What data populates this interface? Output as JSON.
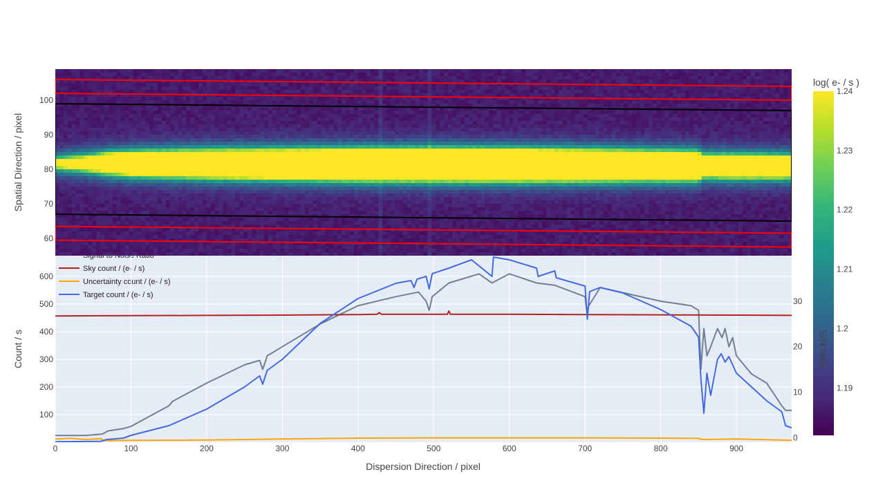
{
  "chart_data": [
    {
      "type": "heatmap",
      "title": "",
      "xlabel": "",
      "ylabel": "Spatial Direction / pixel",
      "xlim": [
        0,
        973
      ],
      "ylim": [
        55,
        109
      ],
      "yticks": [
        60,
        70,
        80,
        90,
        100
      ],
      "colorbar": {
        "title": "log( e- / s )",
        "range": [
          1.182,
          1.24
        ],
        "ticks": [
          "1.24",
          "1.23",
          "1.22",
          "1.21",
          "1.2",
          "1.19"
        ],
        "tick_values": [
          1.24,
          1.23,
          1.22,
          1.21,
          1.2,
          1.19
        ],
        "colorscale": [
          "#440154",
          "#482878",
          "#3e4989",
          "#31688e",
          "#26828e",
          "#1f9e89",
          "#35b779",
          "#6ece58",
          "#b5de2b",
          "#fde725"
        ]
      },
      "trace": {
        "profile": [
          [
            0,
            81.7,
            0.8
          ],
          [
            60,
            81.7,
            2.2
          ],
          [
            66,
            81.7,
            2.6
          ],
          [
            100,
            81.6,
            3.1
          ],
          [
            200,
            81.5,
            3.7
          ],
          [
            300,
            81.4,
            4.0
          ],
          [
            400,
            81.3,
            4.3
          ],
          [
            500,
            81.3,
            4.4
          ],
          [
            600,
            81.2,
            4.4
          ],
          [
            700,
            81.1,
            4.2
          ],
          [
            800,
            81.0,
            3.9
          ],
          [
            850,
            80.9,
            3.8
          ],
          [
            855,
            80.9,
            2.8
          ],
          [
            900,
            80.8,
            3.0
          ],
          [
            973,
            80.7,
            2.8
          ]
        ]
      },
      "bright_columns": [
        428,
        495
      ],
      "boxes": {
        "target_aperture": {
          "color": "#000000",
          "x": [
            0,
            973
          ],
          "upper_y": [
            99,
            97
          ],
          "lower_y": [
            67,
            65
          ]
        },
        "sky_regions": [
          {
            "color": "#ff0000",
            "x": [
              0,
              973
            ],
            "upper_y": [
              106,
              104
            ],
            "lower_y": [
              102,
              100
            ]
          },
          {
            "color": "#ff0000",
            "x": [
              0,
              973
            ],
            "upper_y": [
              63.5,
              61.5
            ],
            "lower_y": [
              59.5,
              57.5
            ]
          }
        ]
      }
    },
    {
      "type": "line",
      "title": "",
      "xlabel": "Dispersion Direction / pixel",
      "ylabel": "Count / s",
      "y2label": "S/N ratio",
      "xlim": [
        0,
        973
      ],
      "ylim": [
        0,
        675
      ],
      "y2lim": [
        -1,
        40
      ],
      "xticks": [
        0,
        100,
        200,
        300,
        400,
        500,
        600,
        700,
        800,
        900
      ],
      "yticks": [
        100,
        200,
        300,
        400,
        500,
        600
      ],
      "y2ticks": [
        0,
        10,
        20,
        30
      ],
      "grid": true,
      "legend_position": "top-left",
      "series": [
        {
          "name": "Signal to Noise Ratio",
          "color": "#708090",
          "axis": "y2",
          "x": [
            0,
            40,
            62,
            70,
            90,
            100,
            150,
            155,
            200,
            250,
            270,
            274,
            280,
            300,
            350,
            400,
            450,
            480,
            490,
            494,
            498,
            520,
            560,
            577,
            600,
            636,
            660,
            700,
            702,
            705,
            720,
            800,
            840,
            850,
            853,
            857,
            861,
            866,
            875,
            881,
            885,
            890,
            895,
            900,
            910,
            920,
            940,
            960,
            965,
            973
          ],
          "y": [
            0.5,
            0.5,
            0.8,
            1.5,
            2,
            2.5,
            7,
            8,
            12,
            16,
            17,
            15,
            18,
            20,
            25,
            29,
            31,
            32,
            30,
            28,
            31,
            34,
            36,
            34,
            36,
            34,
            33.5,
            31,
            28,
            29,
            33,
            30,
            29,
            28,
            15,
            24,
            18,
            20,
            24,
            22,
            24,
            20,
            22,
            18,
            16,
            14,
            12,
            7,
            6,
            6
          ]
        },
        {
          "name": "Sky count / (e- / s)",
          "color": "#b22222",
          "axis": "y",
          "x": [
            0,
            100,
            200,
            300,
            400,
            425,
            428,
            431,
            500,
            518,
            520,
            522,
            600,
            700,
            800,
            900,
            973
          ],
          "y": [
            457,
            458,
            459,
            460,
            462,
            463,
            469,
            463,
            463,
            463,
            475,
            463,
            463,
            462,
            461,
            460,
            459
          ]
        },
        {
          "name": "Uncertainty count / (e- / s)",
          "color": "#ffa500",
          "axis": "y",
          "x": [
            0,
            20,
            40,
            60,
            65,
            100,
            200,
            300,
            400,
            500,
            600,
            700,
            800,
            850,
            855,
            900,
            973
          ],
          "y": [
            12,
            14,
            10,
            13,
            6,
            7,
            8,
            12,
            15,
            16,
            16,
            16,
            15,
            14,
            10,
            12,
            7
          ]
        },
        {
          "name": "Target count / (e- / s)",
          "color": "#4169e1",
          "axis": "y",
          "x": [
            0,
            60,
            68,
            90,
            100,
            150,
            200,
            250,
            270,
            274,
            280,
            300,
            350,
            400,
            450,
            470,
            474,
            478,
            490,
            494,
            498,
            520,
            550,
            577,
            579,
            600,
            636,
            638,
            660,
            662,
            700,
            703,
            706,
            720,
            750,
            800,
            840,
            850,
            853,
            857,
            861,
            866,
            875,
            880,
            885,
            890,
            900,
            920,
            940,
            960,
            965,
            973
          ],
          "y": [
            2,
            3,
            10,
            15,
            25,
            60,
            120,
            200,
            240,
            210,
            260,
            300,
            430,
            520,
            575,
            585,
            560,
            590,
            600,
            555,
            610,
            630,
            660,
            600,
            670,
            660,
            630,
            600,
            620,
            595,
            565,
            445,
            545,
            560,
            540,
            480,
            420,
            380,
            230,
            105,
            250,
            170,
            300,
            320,
            290,
            310,
            250,
            200,
            150,
            110,
            60,
            52
          ]
        }
      ]
    }
  ]
}
